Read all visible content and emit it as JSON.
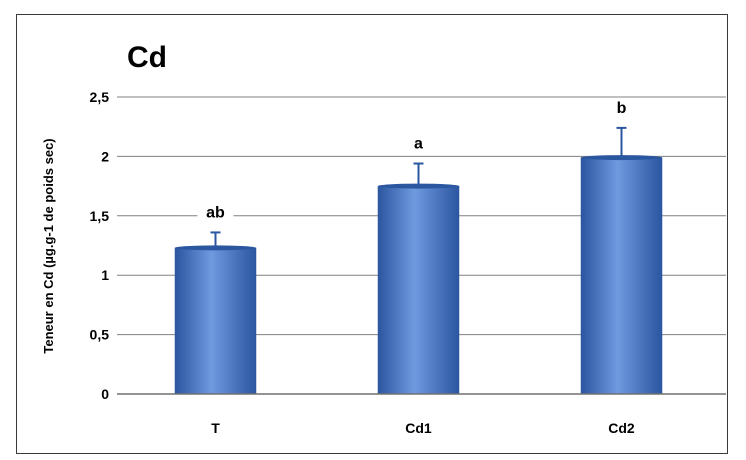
{
  "chart_data": {
    "type": "bar",
    "title": "Cd",
    "xlabel": "",
    "ylabel": "Teneur en Cd (µg.g-1 de poids sec)",
    "categories": [
      "T",
      "Cd1",
      "Cd2"
    ],
    "values": [
      1.23,
      1.75,
      1.99
    ],
    "error": [
      0.13,
      0.19,
      0.25
    ],
    "significance": [
      "ab",
      "a",
      "b"
    ],
    "ylim": [
      0,
      2.5
    ],
    "yticks": [
      "0",
      "0,5",
      "1",
      "1,5",
      "2",
      "2,5"
    ],
    "grid": true,
    "legend": "none",
    "bar_color": "#3f72c4",
    "bar_color_light": "#6f9ae0",
    "bar_color_dark": "#2b56a0",
    "grid_color": "#808080"
  }
}
